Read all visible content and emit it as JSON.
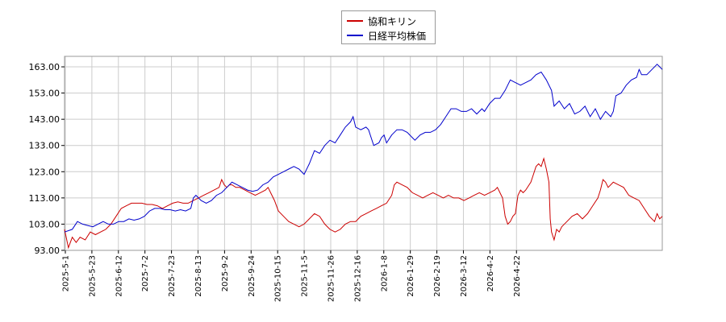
{
  "chart_data": {
    "type": "line",
    "title": "",
    "xlabel": "",
    "ylabel": "",
    "ylim": [
      93,
      167
    ],
    "grid": true,
    "legend_position": "top-center",
    "y_ticks": [
      "93.00",
      "103.00",
      "113.00",
      "123.00",
      "133.00",
      "143.00",
      "153.00",
      "163.00"
    ],
    "x_ticks": [
      "2025-5-1",
      "2025-5-23",
      "2025-6-12",
      "2025-7-2",
      "2025-7-23",
      "2025-8-13",
      "2025-9-2",
      "2025-9-24",
      "2025-10-15",
      "2025-11-5",
      "2025-11-26",
      "2025-12-16",
      "2026-1-8",
      "2026-1-29",
      "2026-2-19",
      "2026-3-12",
      "2026-4-2",
      "2026-4-22"
    ],
    "series": [
      {
        "name": "協和キリン",
        "color": "#cc0000",
        "points": [
          [
            0,
            101
          ],
          [
            3,
            94
          ],
          [
            6,
            98
          ],
          [
            9,
            96
          ],
          [
            12,
            98
          ],
          [
            16,
            97
          ],
          [
            20,
            100
          ],
          [
            24,
            99
          ],
          [
            28,
            100
          ],
          [
            32,
            101
          ],
          [
            36,
            103
          ],
          [
            40,
            106
          ],
          [
            44,
            109
          ],
          [
            48,
            110
          ],
          [
            52,
            111
          ],
          [
            56,
            111
          ],
          [
            60,
            111
          ],
          [
            64,
            110.5
          ],
          [
            68,
            110.5
          ],
          [
            72,
            110
          ],
          [
            76,
            109
          ],
          [
            80,
            110
          ],
          [
            84,
            111
          ],
          [
            88,
            111.5
          ],
          [
            92,
            111
          ],
          [
            96,
            111
          ],
          [
            100,
            112
          ],
          [
            104,
            113
          ],
          [
            108,
            114
          ],
          [
            112,
            115
          ],
          [
            116,
            116
          ],
          [
            120,
            117
          ],
          [
            122,
            120
          ],
          [
            124,
            118
          ],
          [
            126,
            117
          ],
          [
            128,
            118
          ],
          [
            130,
            118
          ],
          [
            133,
            117
          ],
          [
            136,
            117
          ],
          [
            140,
            116
          ],
          [
            144,
            115
          ],
          [
            148,
            114
          ],
          [
            152,
            115
          ],
          [
            156,
            116
          ],
          [
            158,
            117
          ],
          [
            160,
            115
          ],
          [
            163,
            112
          ],
          [
            166,
            108
          ],
          [
            170,
            106
          ],
          [
            174,
            104
          ],
          [
            178,
            103
          ],
          [
            182,
            102
          ],
          [
            186,
            103
          ],
          [
            190,
            105
          ],
          [
            194,
            107
          ],
          [
            198,
            106
          ],
          [
            202,
            103
          ],
          [
            206,
            101
          ],
          [
            210,
            100
          ],
          [
            214,
            101
          ],
          [
            218,
            103
          ],
          [
            222,
            104
          ],
          [
            226,
            104
          ],
          [
            230,
            106
          ],
          [
            234,
            107
          ],
          [
            238,
            108
          ],
          [
            242,
            109
          ],
          [
            246,
            110
          ],
          [
            250,
            111
          ],
          [
            254,
            114
          ],
          [
            256,
            118
          ],
          [
            258,
            119
          ],
          [
            262,
            118
          ],
          [
            266,
            117
          ],
          [
            270,
            115
          ],
          [
            274,
            114
          ],
          [
            278,
            113
          ],
          [
            282,
            114
          ],
          [
            286,
            115
          ],
          [
            290,
            114
          ],
          [
            294,
            113
          ],
          [
            298,
            114
          ],
          [
            302,
            113
          ],
          [
            306,
            113
          ],
          [
            310,
            112
          ],
          [
            314,
            113
          ],
          [
            318,
            114
          ],
          [
            322,
            115
          ],
          [
            326,
            114
          ],
          [
            330,
            115
          ],
          [
            334,
            116
          ],
          [
            336,
            117
          ],
          [
            338,
            115
          ],
          [
            340,
            113
          ],
          [
            342,
            106
          ],
          [
            344,
            103
          ],
          [
            346,
            104
          ],
          [
            348,
            106
          ],
          [
            350,
            107
          ],
          [
            352,
            114
          ],
          [
            354,
            116
          ],
          [
            356,
            115
          ],
          [
            358,
            116
          ],
          [
            362,
            119
          ],
          [
            364,
            122
          ],
          [
            366,
            125
          ],
          [
            368,
            126
          ],
          [
            370,
            125
          ],
          [
            372,
            128
          ],
          [
            374,
            124
          ],
          [
            376,
            119
          ],
          [
            377,
            105
          ],
          [
            378,
            100
          ],
          [
            380,
            97
          ],
          [
            382,
            101
          ],
          [
            384,
            100
          ],
          [
            386,
            102
          ],
          [
            390,
            104
          ],
          [
            394,
            106
          ],
          [
            398,
            107
          ],
          [
            402,
            105
          ],
          [
            406,
            107
          ],
          [
            410,
            110
          ],
          [
            414,
            113
          ],
          [
            416,
            116
          ],
          [
            418,
            120
          ],
          [
            420,
            119
          ],
          [
            422,
            117
          ],
          [
            426,
            119
          ],
          [
            430,
            118
          ],
          [
            434,
            117
          ],
          [
            438,
            114
          ],
          [
            442,
            113
          ],
          [
            446,
            112
          ],
          [
            450,
            109
          ],
          [
            454,
            106
          ],
          [
            458,
            104
          ],
          [
            460,
            107
          ],
          [
            462,
            105
          ],
          [
            464,
            106
          ]
        ]
      },
      {
        "name": "日経平均株価",
        "color": "#0000cc",
        "points": [
          [
            0,
            100
          ],
          [
            6,
            101
          ],
          [
            10,
            104
          ],
          [
            14,
            103
          ],
          [
            18,
            102.5
          ],
          [
            22,
            102
          ],
          [
            26,
            103
          ],
          [
            30,
            104
          ],
          [
            34,
            103
          ],
          [
            38,
            103
          ],
          [
            42,
            104
          ],
          [
            46,
            104
          ],
          [
            50,
            105
          ],
          [
            54,
            104.5
          ],
          [
            58,
            105
          ],
          [
            62,
            106
          ],
          [
            66,
            108
          ],
          [
            70,
            109
          ],
          [
            74,
            109
          ],
          [
            78,
            108.5
          ],
          [
            82,
            108.5
          ],
          [
            86,
            108
          ],
          [
            90,
            108.5
          ],
          [
            94,
            108
          ],
          [
            98,
            109
          ],
          [
            100,
            113
          ],
          [
            102,
            114
          ],
          [
            106,
            112
          ],
          [
            110,
            111
          ],
          [
            114,
            112
          ],
          [
            118,
            114
          ],
          [
            122,
            115
          ],
          [
            126,
            117
          ],
          [
            130,
            119
          ],
          [
            134,
            118
          ],
          [
            138,
            117
          ],
          [
            142,
            116
          ],
          [
            146,
            115.5
          ],
          [
            150,
            116
          ],
          [
            154,
            118
          ],
          [
            158,
            119
          ],
          [
            162,
            121
          ],
          [
            166,
            122
          ],
          [
            170,
            123
          ],
          [
            174,
            124
          ],
          [
            178,
            125
          ],
          [
            182,
            124
          ],
          [
            186,
            122
          ],
          [
            190,
            126
          ],
          [
            194,
            131
          ],
          [
            198,
            130
          ],
          [
            202,
            133
          ],
          [
            206,
            135
          ],
          [
            210,
            134
          ],
          [
            214,
            137
          ],
          [
            218,
            140
          ],
          [
            222,
            142
          ],
          [
            224,
            144
          ],
          [
            226,
            140
          ],
          [
            230,
            139
          ],
          [
            234,
            140
          ],
          [
            236,
            139
          ],
          [
            238,
            136
          ],
          [
            240,
            133
          ],
          [
            244,
            134
          ],
          [
            246,
            136
          ],
          [
            248,
            137
          ],
          [
            250,
            134
          ],
          [
            254,
            137
          ],
          [
            258,
            139
          ],
          [
            262,
            139
          ],
          [
            266,
            138
          ],
          [
            270,
            136
          ],
          [
            272,
            135
          ],
          [
            276,
            137
          ],
          [
            280,
            138
          ],
          [
            284,
            138
          ],
          [
            288,
            139
          ],
          [
            292,
            141
          ],
          [
            296,
            144
          ],
          [
            300,
            147
          ],
          [
            304,
            147
          ],
          [
            308,
            146
          ],
          [
            312,
            146
          ],
          [
            316,
            147
          ],
          [
            320,
            145
          ],
          [
            324,
            147
          ],
          [
            326,
            146
          ],
          [
            330,
            149
          ],
          [
            334,
            151
          ],
          [
            338,
            151
          ],
          [
            342,
            154
          ],
          [
            346,
            158
          ],
          [
            350,
            157
          ],
          [
            354,
            156
          ],
          [
            358,
            157
          ],
          [
            362,
            158
          ],
          [
            366,
            160
          ],
          [
            370,
            161
          ],
          [
            374,
            158
          ],
          [
            378,
            154
          ],
          [
            380,
            148
          ],
          [
            384,
            150
          ],
          [
            388,
            147
          ],
          [
            392,
            149
          ],
          [
            396,
            145
          ],
          [
            400,
            146
          ],
          [
            404,
            148
          ],
          [
            408,
            144
          ],
          [
            412,
            147
          ],
          [
            416,
            143
          ],
          [
            420,
            146
          ],
          [
            424,
            144
          ],
          [
            426,
            146
          ],
          [
            428,
            152
          ],
          [
            432,
            153
          ],
          [
            436,
            156
          ],
          [
            440,
            158
          ],
          [
            444,
            159
          ],
          [
            446,
            162
          ],
          [
            448,
            160
          ],
          [
            452,
            160
          ],
          [
            456,
            162
          ],
          [
            460,
            164
          ],
          [
            462,
            163
          ],
          [
            464,
            162
          ]
        ]
      }
    ]
  }
}
